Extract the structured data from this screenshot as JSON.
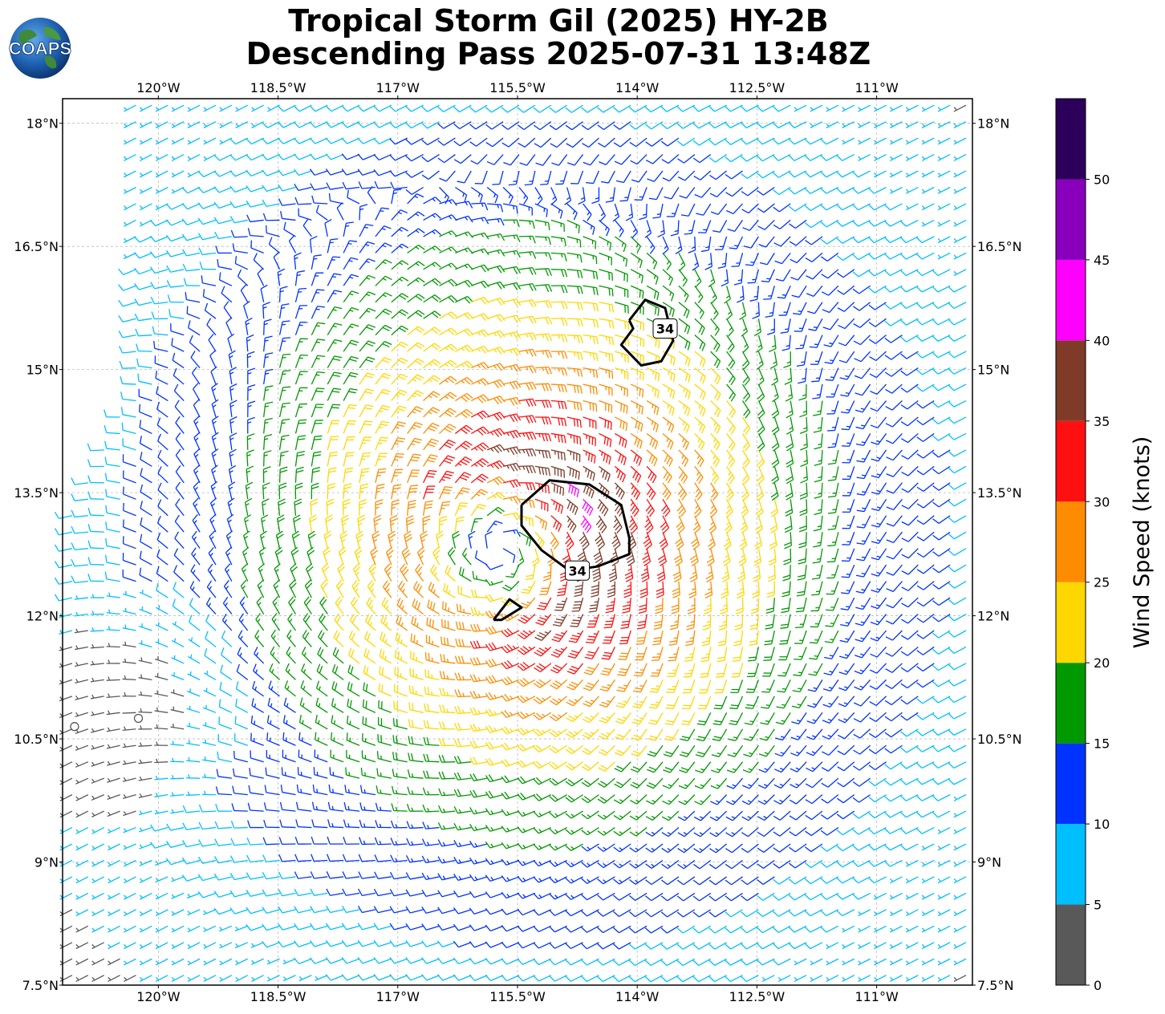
{
  "title": {
    "line1": "Tropical Storm Gil (2025) HY-2B",
    "line2": "Descending Pass 2025-07-31 13:48Z"
  },
  "logo": {
    "text": "COAPS",
    "icon": "globe-logo-icon"
  },
  "map": {
    "lon_range": [
      -121.2,
      -109.8
    ],
    "lat_range": [
      7.5,
      18.3
    ],
    "lon_ticks": [
      {
        "value": -120,
        "label": "120°W"
      },
      {
        "value": -118.5,
        "label": "118.5°W"
      },
      {
        "value": -117,
        "label": "117°W"
      },
      {
        "value": -115.5,
        "label": "115.5°W"
      },
      {
        "value": -114,
        "label": "114°W"
      },
      {
        "value": -112.5,
        "label": "112.5°W"
      },
      {
        "value": -111,
        "label": "111°W"
      }
    ],
    "lat_ticks": [
      {
        "value": 18,
        "label": "18°N"
      },
      {
        "value": 16.5,
        "label": "16.5°N"
      },
      {
        "value": 15,
        "label": "15°N"
      },
      {
        "value": 13.5,
        "label": "13.5°N"
      },
      {
        "value": 12,
        "label": "12°N"
      },
      {
        "value": 10.5,
        "label": "10.5°N"
      },
      {
        "value": 9,
        "label": "9°N"
      },
      {
        "value": 7.5,
        "label": "7.5°N"
      }
    ],
    "gridlines": true,
    "storm_center": {
      "lon": -115.7,
      "lat": 12.8
    },
    "contours": [
      {
        "label": "34",
        "points": [
          [
            -115.45,
            13.35
          ],
          [
            -115.1,
            13.65
          ],
          [
            -114.6,
            13.6
          ],
          [
            -114.2,
            13.35
          ],
          [
            -114.1,
            12.95
          ],
          [
            -114.1,
            12.75
          ],
          [
            -114.5,
            12.6
          ],
          [
            -114.85,
            12.55
          ],
          [
            -115.2,
            12.8
          ],
          [
            -115.45,
            13.1
          ],
          [
            -115.45,
            13.35
          ]
        ],
        "label_at": [
          -114.75,
          12.55
        ]
      },
      {
        "label": "34",
        "points": [
          [
            -114.1,
            15.6
          ],
          [
            -113.9,
            15.85
          ],
          [
            -113.65,
            15.75
          ],
          [
            -113.55,
            15.35
          ],
          [
            -113.7,
            15.1
          ],
          [
            -113.95,
            15.05
          ],
          [
            -114.2,
            15.3
          ],
          [
            -114.05,
            15.5
          ],
          [
            -114.1,
            15.6
          ]
        ],
        "label_at": [
          -113.65,
          15.5
        ]
      },
      {
        "label": "",
        "points": [
          [
            -115.8,
            11.95
          ],
          [
            -115.6,
            12.2
          ],
          [
            -115.45,
            12.1
          ],
          [
            -115.7,
            11.95
          ],
          [
            -115.8,
            11.95
          ]
        ],
        "label_at": null
      }
    ],
    "calm_markers": [
      {
        "lon": -121.05,
        "lat": 10.65
      },
      {
        "lon": -120.25,
        "lat": 10.75
      }
    ]
  },
  "colorbar": {
    "label": "Wind Speed (knots)",
    "bins": [
      {
        "min": 0,
        "max": 5,
        "color": "#595959"
      },
      {
        "min": 5,
        "max": 10,
        "color": "#00bfff"
      },
      {
        "min": 10,
        "max": 15,
        "color": "#0033ff"
      },
      {
        "min": 15,
        "max": 20,
        "color": "#009900"
      },
      {
        "min": 20,
        "max": 25,
        "color": "#ffd700"
      },
      {
        "min": 25,
        "max": 30,
        "color": "#ff8c00"
      },
      {
        "min": 30,
        "max": 35,
        "color": "#ff1010"
      },
      {
        "min": 35,
        "max": 40,
        "color": "#7f3a28"
      },
      {
        "min": 40,
        "max": 45,
        "color": "#ff00ff"
      },
      {
        "min": 45,
        "max": 50,
        "color": "#8800bb"
      },
      {
        "min": 50,
        "max": 55,
        "color": "#2c005a"
      }
    ],
    "ticks": [
      {
        "value": 0,
        "label": "0"
      },
      {
        "value": 5,
        "label": "5"
      },
      {
        "value": 10,
        "label": "10"
      },
      {
        "value": 15,
        "label": "15"
      },
      {
        "value": 20,
        "label": "20"
      },
      {
        "value": 25,
        "label": "25"
      },
      {
        "value": 30,
        "label": "30"
      },
      {
        "value": 35,
        "label": "35"
      },
      {
        "value": 40,
        "label": "40"
      },
      {
        "value": 45,
        "label": "45"
      },
      {
        "value": 50,
        "label": "50"
      }
    ]
  }
}
